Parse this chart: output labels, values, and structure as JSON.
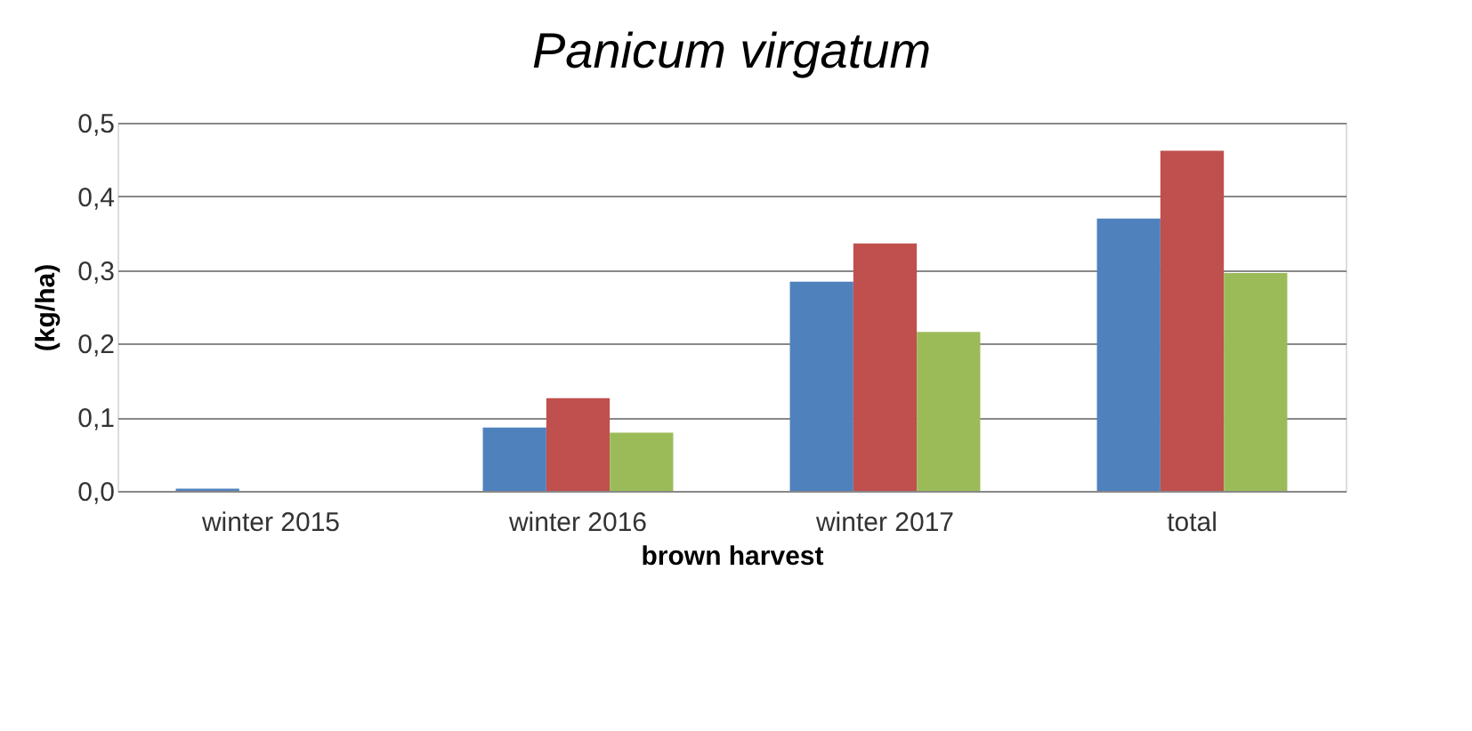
{
  "chart_data": {
    "type": "bar",
    "title": "Panicum virgatum",
    "xlabel": "brown harvest",
    "ylabel": "(kg/ha)",
    "categories": [
      "winter 2015",
      "winter 2016",
      "winter 2017",
      "total"
    ],
    "series": [
      {
        "color": "#4f81bd",
        "values": [
          0.003,
          0.086,
          0.284,
          0.37
        ]
      },
      {
        "color": "#c0504d",
        "values": [
          0,
          0.126,
          0.336,
          0.462
        ]
      },
      {
        "color": "#9bbb59",
        "values": [
          0,
          0.079,
          0.216,
          0.296
        ]
      }
    ],
    "ylim": [
      0,
      0.5
    ],
    "yticks": [
      {
        "value": 0,
        "label": "0,0"
      },
      {
        "value": 0.1,
        "label": "0,1"
      },
      {
        "value": 0.2,
        "label": "0,2"
      },
      {
        "value": 0.3,
        "label": "0,3"
      },
      {
        "value": 0.4,
        "label": "0,4"
      },
      {
        "value": 0.5,
        "label": "0,5"
      }
    ],
    "grid": "y",
    "legend": false
  }
}
